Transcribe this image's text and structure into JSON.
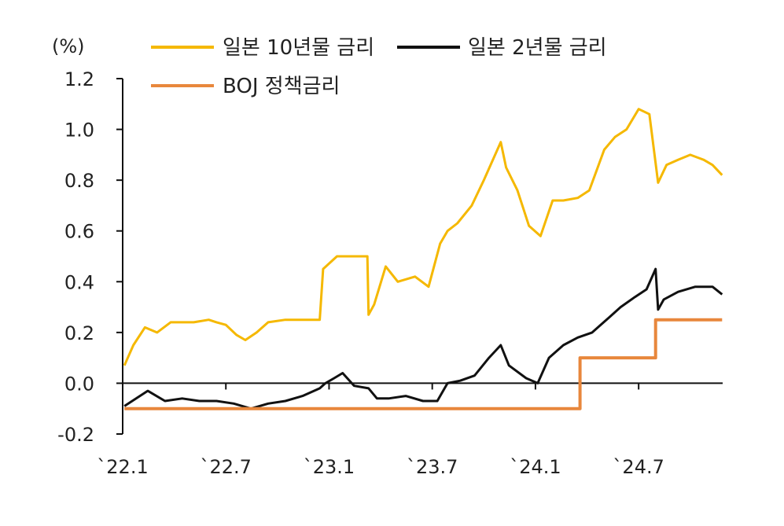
{
  "chart_data": {
    "type": "line",
    "unit_label": "(%)",
    "ylim": [
      -0.2,
      1.2
    ],
    "y_ticks": [
      "1.2",
      "1.0",
      "0.8",
      "0.6",
      "0.4",
      "0.2",
      "0.0",
      "-0.2"
    ],
    "y_tick_values": [
      1.2,
      1.0,
      0.8,
      0.6,
      0.4,
      0.2,
      0.0,
      -0.2
    ],
    "x_range": [
      "2022-01",
      "2024-12"
    ],
    "x_ticks": [
      "`22.1",
      "`22.7",
      "`23.1",
      "`23.7",
      "`24.1",
      "`24.7"
    ],
    "x_tick_dates": [
      "2022-01",
      "2022-07",
      "2023-01",
      "2023-07",
      "2024-01",
      "2024-07"
    ],
    "legend_position": "top",
    "grid": false,
    "zero_line": true,
    "series": [
      {
        "name": "일본 10년물 금리",
        "color": "#F5B800",
        "x": [
          "2022-01-04",
          "2022-01-20",
          "2022-02-10",
          "2022-03-01",
          "2022-03-25",
          "2022-04-15",
          "2022-05-05",
          "2022-06-01",
          "2022-06-15",
          "2022-07-01",
          "2022-07-20",
          "2022-08-05",
          "2022-08-25",
          "2022-09-15",
          "2022-10-15",
          "2022-11-15",
          "2022-12-15",
          "2022-12-21",
          "2023-01-15",
          "2023-01-25",
          "2023-02-15",
          "2023-03-08",
          "2023-03-10",
          "2023-03-20",
          "2023-04-10",
          "2023-05-01",
          "2023-06-01",
          "2023-06-25",
          "2023-07-15",
          "2023-07-28",
          "2023-08-15",
          "2023-09-10",
          "2023-10-01",
          "2023-10-31",
          "2023-11-10",
          "2023-11-30",
          "2023-12-20",
          "2024-01-10",
          "2024-02-01",
          "2024-02-20",
          "2024-03-15",
          "2024-04-05",
          "2024-05-01",
          "2024-05-20",
          "2024-06-10",
          "2024-07-01",
          "2024-07-20",
          "2024-08-05",
          "2024-08-20",
          "2024-09-10",
          "2024-10-01",
          "2024-10-25",
          "2024-11-10",
          "2024-11-27"
        ],
        "values": [
          0.07,
          0.15,
          0.22,
          0.2,
          0.24,
          0.24,
          0.24,
          0.25,
          0.24,
          0.23,
          0.19,
          0.17,
          0.2,
          0.24,
          0.25,
          0.25,
          0.25,
          0.45,
          0.5,
          0.5,
          0.5,
          0.5,
          0.27,
          0.31,
          0.46,
          0.4,
          0.42,
          0.38,
          0.55,
          0.6,
          0.63,
          0.7,
          0.8,
          0.95,
          0.85,
          0.76,
          0.62,
          0.58,
          0.72,
          0.72,
          0.73,
          0.76,
          0.92,
          0.97,
          1.0,
          1.08,
          1.06,
          0.79,
          0.86,
          0.88,
          0.9,
          0.88,
          0.86,
          0.82
        ]
      },
      {
        "name": "일본 2년물 금리",
        "color": "#111111",
        "x": [
          "2022-01-04",
          "2022-02-15",
          "2022-03-15",
          "2022-04-15",
          "2022-05-15",
          "2022-06-15",
          "2022-07-15",
          "2022-08-15",
          "2022-09-15",
          "2022-10-15",
          "2022-11-15",
          "2022-12-15",
          "2022-12-25",
          "2023-01-10",
          "2023-01-25",
          "2023-02-15",
          "2023-03-10",
          "2023-03-25",
          "2023-04-15",
          "2023-05-15",
          "2023-06-15",
          "2023-07-10",
          "2023-07-28",
          "2023-08-20",
          "2023-09-15",
          "2023-10-10",
          "2023-10-31",
          "2023-11-15",
          "2023-12-15",
          "2024-01-05",
          "2024-01-25",
          "2024-02-20",
          "2024-03-15",
          "2024-04-10",
          "2024-05-10",
          "2024-05-30",
          "2024-06-25",
          "2024-07-15",
          "2024-07-31",
          "2024-08-05",
          "2024-08-15",
          "2024-09-10",
          "2024-10-10",
          "2024-11-10",
          "2024-11-27"
        ],
        "values": [
          -0.09,
          -0.03,
          -0.07,
          -0.06,
          -0.07,
          -0.07,
          -0.08,
          -0.1,
          -0.08,
          -0.07,
          -0.05,
          -0.02,
          0.0,
          0.02,
          0.04,
          -0.01,
          -0.02,
          -0.06,
          -0.06,
          -0.05,
          -0.07,
          -0.07,
          0.0,
          0.01,
          0.03,
          0.1,
          0.15,
          0.07,
          0.02,
          0.0,
          0.1,
          0.15,
          0.18,
          0.2,
          0.26,
          0.3,
          0.34,
          0.37,
          0.45,
          0.29,
          0.33,
          0.36,
          0.38,
          0.38,
          0.35
        ]
      },
      {
        "name": "BOJ 정책금리",
        "color": "#E8873C",
        "x": [
          "2022-01-04",
          "2024-03-19",
          "2024-03-19",
          "2024-07-31",
          "2024-07-31",
          "2024-11-27"
        ],
        "values": [
          -0.1,
          -0.1,
          0.1,
          0.1,
          0.25,
          0.25
        ]
      }
    ]
  }
}
